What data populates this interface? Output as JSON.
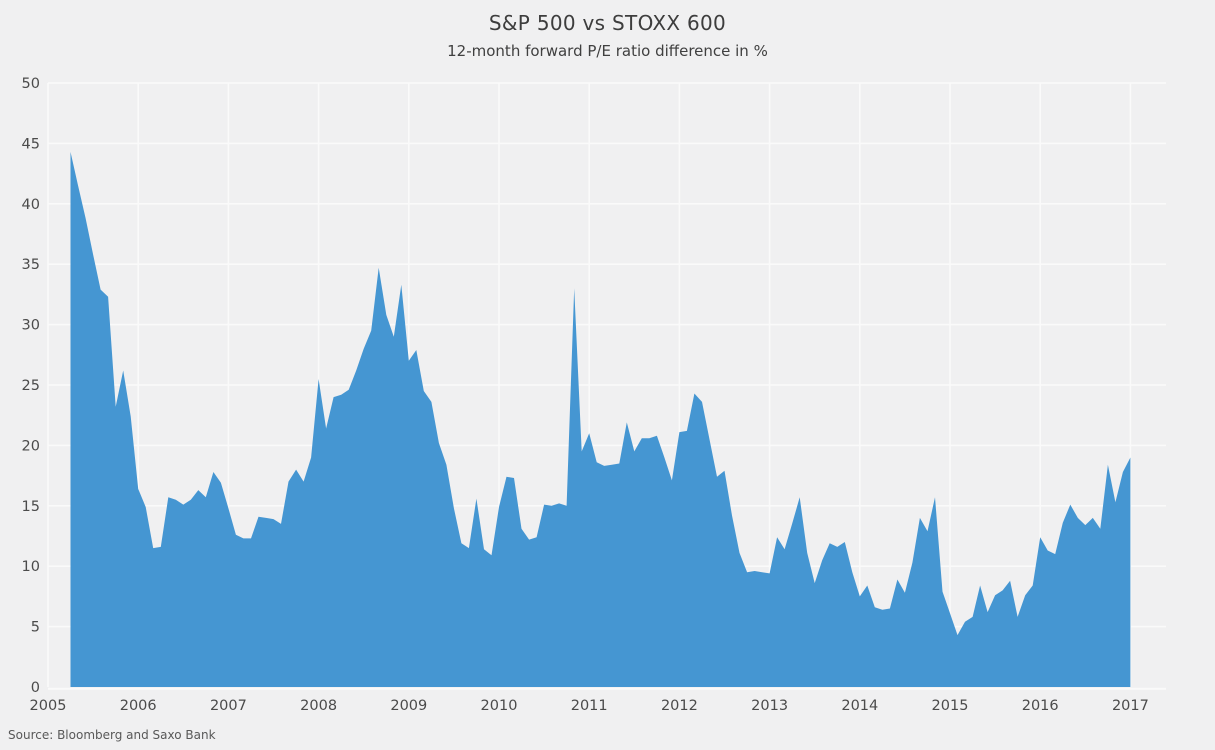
{
  "chart_data": {
    "type": "area",
    "title": "S&P 500 vs STOXX 600",
    "subtitle": "12-month forward P/E ratio difference in %",
    "source": "Source: Bloomberg and Saxo Bank",
    "legend": "none",
    "grid": true,
    "xlabel": "",
    "ylabel": "",
    "xlim": [
      2005,
      2017.4
    ],
    "ylim": [
      0,
      50
    ],
    "x_tick_labels": [
      "2005",
      "2006",
      "2007",
      "2008",
      "2009",
      "2010",
      "2011",
      "2012",
      "2013",
      "2014",
      "2015",
      "2016",
      "2017"
    ],
    "y_ticks": [
      0,
      5,
      10,
      15,
      20,
      25,
      30,
      35,
      40,
      45,
      50
    ],
    "colors": {
      "area": "#4596d2",
      "background": "#f0f0f1",
      "gridline": "#fafafa",
      "title_text": "#3d3d3d",
      "tick_text": "#4b4b4b",
      "source_text": "#585858"
    },
    "data": {
      "start": "2005-04",
      "frequency": "monthly",
      "unit": "%",
      "values": [
        44.3,
        41.5,
        38.8,
        35.8,
        32.9,
        32.3,
        23.2,
        26.2,
        22.4,
        16.4,
        14.9,
        11.5,
        11.6,
        15.7,
        15.5,
        15.1,
        15.5,
        16.3,
        15.7,
        17.8,
        16.9,
        14.8,
        12.6,
        12.3,
        12.3,
        14.1,
        14.0,
        13.9,
        13.5,
        17.0,
        18.0,
        17.0,
        19.0,
        25.5,
        21.4,
        24.0,
        24.2,
        24.6,
        26.2,
        28.0,
        29.5,
        34.7,
        30.8,
        29.0,
        33.3,
        27.0,
        27.9,
        24.5,
        23.6,
        20.2,
        18.4,
        14.8,
        11.9,
        11.5,
        15.6,
        11.4,
        10.9,
        14.9,
        17.4,
        17.3,
        13.1,
        12.2,
        12.4,
        15.1,
        15.0,
        15.2,
        15.0,
        33.0,
        19.5,
        21.0,
        18.6,
        18.3,
        18.4,
        18.5,
        21.9,
        19.5,
        20.6,
        20.6,
        20.8,
        19.0,
        17.1,
        21.1,
        21.2,
        24.3,
        23.6,
        20.5,
        17.4,
        17.9,
        14.2,
        11.1,
        9.5,
        9.6,
        9.5,
        9.4,
        12.4,
        11.4,
        13.5,
        15.7,
        11.1,
        8.6,
        10.5,
        11.9,
        11.6,
        12.0,
        9.5,
        7.5,
        8.4,
        6.6,
        6.4,
        6.5,
        8.9,
        7.8,
        10.3,
        14.0,
        12.9,
        15.7,
        7.9,
        6.1,
        4.3,
        5.4,
        5.8,
        8.4,
        6.2,
        7.6,
        8.0,
        8.8,
        5.8,
        7.6,
        8.4,
        12.4,
        11.3,
        11.0,
        13.6,
        15.1,
        14.0,
        13.4,
        14.0,
        13.1,
        18.4,
        15.3,
        17.8,
        19.0
      ]
    }
  }
}
